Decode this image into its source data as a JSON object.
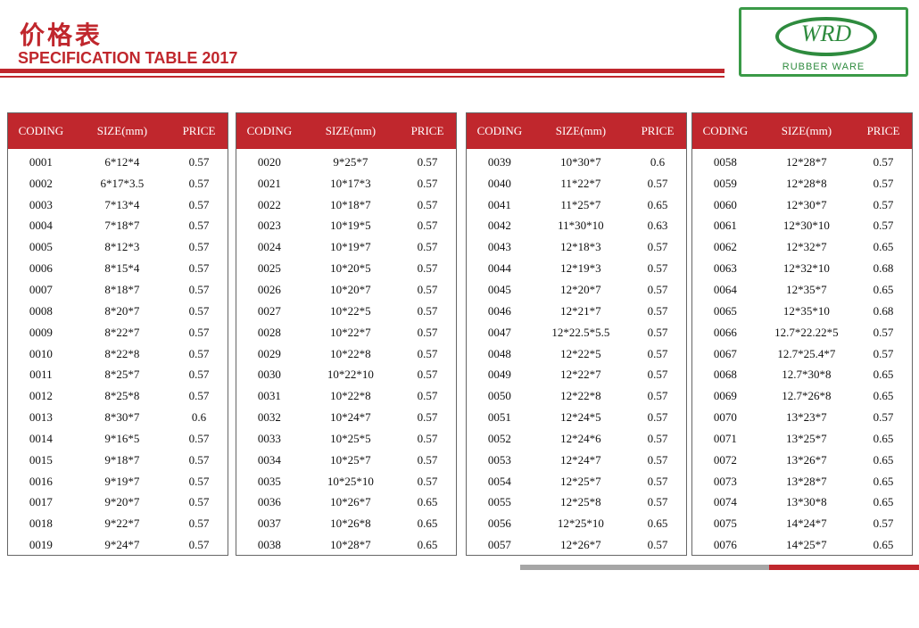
{
  "header": {
    "title_cn": "价格表",
    "title_en": "SPECIFICATION TABLE 2017"
  },
  "logo": {
    "mark": "WRD",
    "subtitle": "RUBBER WARE"
  },
  "colors": {
    "accent": "#c0272d",
    "logo_green": "#2e8b3e"
  },
  "columns": [
    "CODING",
    "SIZE(mm)",
    "PRICE"
  ],
  "tables": [
    {
      "rows": [
        [
          "0001",
          "6*12*4",
          "0.57"
        ],
        [
          "0002",
          "6*17*3.5",
          "0.57"
        ],
        [
          "0003",
          "7*13*4",
          "0.57"
        ],
        [
          "0004",
          "7*18*7",
          "0.57"
        ],
        [
          "0005",
          "8*12*3",
          "0.57"
        ],
        [
          "0006",
          "8*15*4",
          "0.57"
        ],
        [
          "0007",
          "8*18*7",
          "0.57"
        ],
        [
          "0008",
          "8*20*7",
          "0.57"
        ],
        [
          "0009",
          "8*22*7",
          "0.57"
        ],
        [
          "0010",
          "8*22*8",
          "0.57"
        ],
        [
          "0011",
          "8*25*7",
          "0.57"
        ],
        [
          "0012",
          "8*25*8",
          "0.57"
        ],
        [
          "0013",
          "8*30*7",
          "0.6"
        ],
        [
          "0014",
          "9*16*5",
          "0.57"
        ],
        [
          "0015",
          "9*18*7",
          "0.57"
        ],
        [
          "0016",
          "9*19*7",
          "0.57"
        ],
        [
          "0017",
          "9*20*7",
          "0.57"
        ],
        [
          "0018",
          "9*22*7",
          "0.57"
        ],
        [
          "0019",
          "9*24*7",
          "0.57"
        ]
      ]
    },
    {
      "rows": [
        [
          "0020",
          "9*25*7",
          "0.57"
        ],
        [
          "0021",
          "10*17*3",
          "0.57"
        ],
        [
          "0022",
          "10*18*7",
          "0.57"
        ],
        [
          "0023",
          "10*19*5",
          "0.57"
        ],
        [
          "0024",
          "10*19*7",
          "0.57"
        ],
        [
          "0025",
          "10*20*5",
          "0.57"
        ],
        [
          "0026",
          "10*20*7",
          "0.57"
        ],
        [
          "0027",
          "10*22*5",
          "0.57"
        ],
        [
          "0028",
          "10*22*7",
          "0.57"
        ],
        [
          "0029",
          "10*22*8",
          "0.57"
        ],
        [
          "0030",
          "10*22*10",
          "0.57"
        ],
        [
          "0031",
          "10*22*8",
          "0.57"
        ],
        [
          "0032",
          "10*24*7",
          "0.57"
        ],
        [
          "0033",
          "10*25*5",
          "0.57"
        ],
        [
          "0034",
          "10*25*7",
          "0.57"
        ],
        [
          "0035",
          "10*25*10",
          "0.57"
        ],
        [
          "0036",
          "10*26*7",
          "0.65"
        ],
        [
          "0037",
          "10*26*8",
          "0.65"
        ],
        [
          "0038",
          "10*28*7",
          "0.65"
        ]
      ]
    },
    {
      "rows": [
        [
          "0039",
          "10*30*7",
          "0.6"
        ],
        [
          "0040",
          "11*22*7",
          "0.57"
        ],
        [
          "0041",
          "11*25*7",
          "0.65"
        ],
        [
          "0042",
          "11*30*10",
          "0.63"
        ],
        [
          "0043",
          "12*18*3",
          "0.57"
        ],
        [
          "0044",
          "12*19*3",
          "0.57"
        ],
        [
          "0045",
          "12*20*7",
          "0.57"
        ],
        [
          "0046",
          "12*21*7",
          "0.57"
        ],
        [
          "0047",
          "12*22.5*5.5",
          "0.57"
        ],
        [
          "0048",
          "12*22*5",
          "0.57"
        ],
        [
          "0049",
          "12*22*7",
          "0.57"
        ],
        [
          "0050",
          "12*22*8",
          "0.57"
        ],
        [
          "0051",
          "12*24*5",
          "0.57"
        ],
        [
          "0052",
          "12*24*6",
          "0.57"
        ],
        [
          "0053",
          "12*24*7",
          "0.57"
        ],
        [
          "0054",
          "12*25*7",
          "0.57"
        ],
        [
          "0055",
          "12*25*8",
          "0.57"
        ],
        [
          "0056",
          "12*25*10",
          "0.65"
        ],
        [
          "0057",
          "12*26*7",
          "0.57"
        ]
      ]
    },
    {
      "rows": [
        [
          "0058",
          "12*28*7",
          "0.57"
        ],
        [
          "0059",
          "12*28*8",
          "0.57"
        ],
        [
          "0060",
          "12*30*7",
          "0.57"
        ],
        [
          "0061",
          "12*30*10",
          "0.57"
        ],
        [
          "0062",
          "12*32*7",
          "0.65"
        ],
        [
          "0063",
          "12*32*10",
          "0.68"
        ],
        [
          "0064",
          "12*35*7",
          "0.65"
        ],
        [
          "0065",
          "12*35*10",
          "0.68"
        ],
        [
          "0066",
          "12.7*22.22*5",
          "0.57"
        ],
        [
          "0067",
          "12.7*25.4*7",
          "0.57"
        ],
        [
          "0068",
          "12.7*30*8",
          "0.65"
        ],
        [
          "0069",
          "12.7*26*8",
          "0.65"
        ],
        [
          "0070",
          "13*23*7",
          "0.57"
        ],
        [
          "0071",
          "13*25*7",
          "0.65"
        ],
        [
          "0072",
          "13*26*7",
          "0.65"
        ],
        [
          "0073",
          "13*28*7",
          "0.65"
        ],
        [
          "0074",
          "13*30*8",
          "0.65"
        ],
        [
          "0075",
          "14*24*7",
          "0.57"
        ],
        [
          "0076",
          "14*25*7",
          "0.65"
        ]
      ]
    }
  ]
}
